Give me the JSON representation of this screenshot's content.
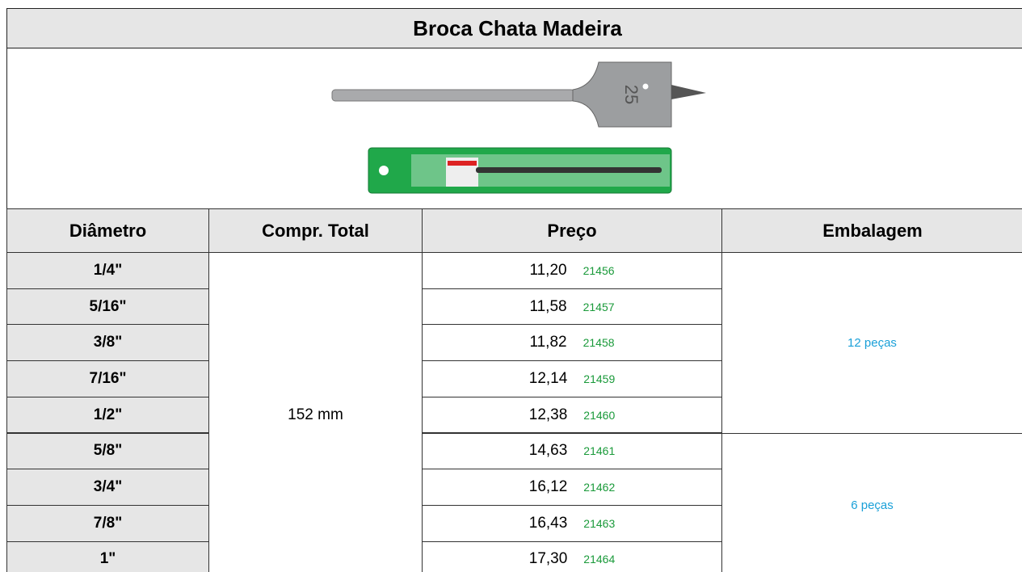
{
  "title": "Broca Chata Madeira",
  "image": {
    "marking": "25"
  },
  "table": {
    "headers": [
      "Diâmetro",
      "Compr. Total",
      "Preço",
      "Embalagem"
    ],
    "length": "152 mm",
    "rows": [
      {
        "diameter": "1/4\"",
        "price": "11,20",
        "code": "21456"
      },
      {
        "diameter": "5/16\"",
        "price": "11,58",
        "code": "21457"
      },
      {
        "diameter": "3/8\"",
        "price": "11,82",
        "code": "21458"
      },
      {
        "diameter": "7/16\"",
        "price": "12,14",
        "code": "21459"
      },
      {
        "diameter": "1/2\"",
        "price": "12,38",
        "code": "21460"
      },
      {
        "diameter": "5/8\"",
        "price": "14,63",
        "code": "21461"
      },
      {
        "diameter": "3/4\"",
        "price": "16,12",
        "code": "21462"
      },
      {
        "diameter": "7/8\"",
        "price": "16,43",
        "code": "21463"
      },
      {
        "diameter": "1\"",
        "price": "17,30",
        "code": "21464"
      }
    ],
    "packaging": [
      "12 peças",
      "6 peças"
    ]
  }
}
